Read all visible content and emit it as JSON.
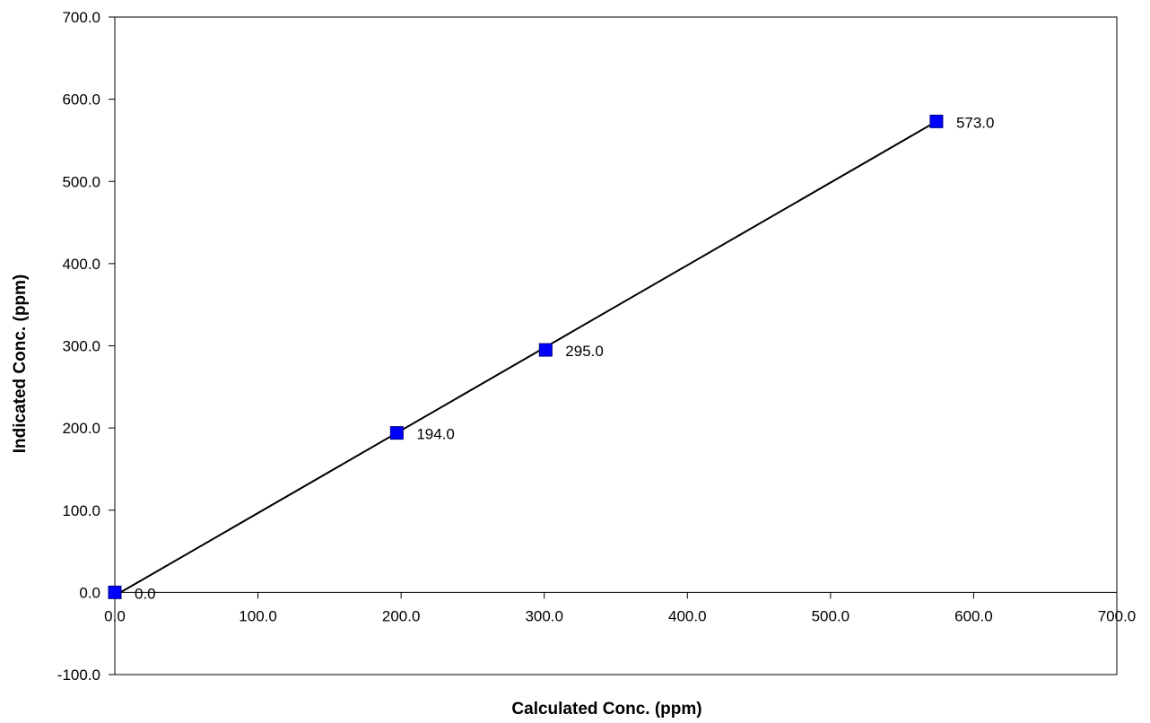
{
  "chart_data": {
    "type": "scatter",
    "title": "",
    "xlabel": "Calculated Conc. (ppm)",
    "ylabel": "Indicated Conc. (ppm)",
    "xlim": [
      0,
      700
    ],
    "ylim": [
      -100,
      700
    ],
    "x_ticks": [
      0,
      100,
      200,
      300,
      400,
      500,
      600,
      700
    ],
    "y_ticks": [
      -100,
      0,
      100,
      200,
      300,
      400,
      500,
      600,
      700
    ],
    "x_tick_labels": [
      "0.0",
      "100.0",
      "200.0",
      "300.0",
      "400.0",
      "500.0",
      "600.0",
      "700.0"
    ],
    "y_tick_labels": [
      "-100.0",
      "0.0",
      "100.0",
      "200.0",
      "300.0",
      "400.0",
      "500.0",
      "600.0",
      "700.0"
    ],
    "grid": false,
    "legend": "none",
    "series": [
      {
        "marker": "square",
        "color": "#0000FF",
        "x": [
          0,
          197,
          301,
          574
        ],
        "y": [
          0,
          194,
          295,
          573
        ],
        "labels": [
          "0.0",
          "194.0",
          "295.0",
          "573.0"
        ]
      }
    ],
    "trendline": {
      "color": "#000000",
      "x": [
        0,
        574
      ],
      "y": [
        -4,
        573
      ]
    }
  }
}
